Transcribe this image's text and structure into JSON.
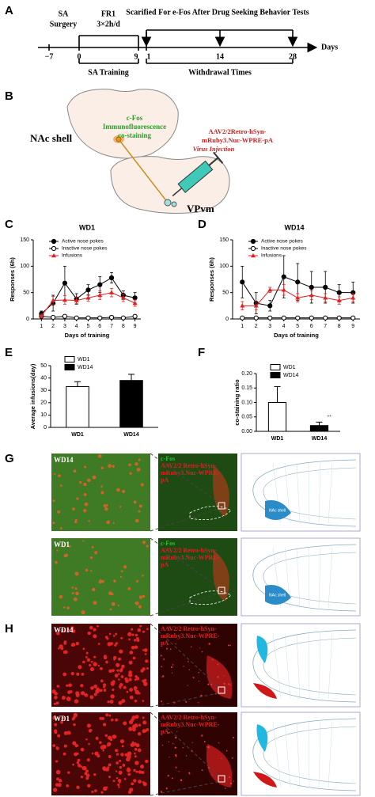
{
  "panel_labels": [
    "A",
    "B",
    "C",
    "D",
    "E",
    "F",
    "G",
    "H"
  ],
  "timeline": {
    "header": "Scarified For e-Fos After Drug Seeking Behavior Tests",
    "day_labels": [
      "−7",
      "0",
      "9",
      "1",
      "14",
      "28"
    ],
    "axis_label": "Days",
    "surgery": [
      "SA",
      "Surgery"
    ],
    "training_schedule": [
      "FR1",
      "3×2h/d"
    ],
    "training": "SA Training",
    "withdrawal": "Withdrawal Times"
  },
  "schematic": {
    "region": "NAc shell",
    "staining": [
      "c-Fos",
      "Immunofluorescence",
      "co-staining"
    ],
    "virus": [
      "AAV2/2Retro-hSyn-",
      "mRuby3.Nuc-WPRE-pA"
    ],
    "virus_note": "Virus Injection",
    "target": "VPvm"
  },
  "chart_data": [
    {
      "type": "line",
      "title": "WD1",
      "xlabel": "Days of training",
      "ylabel": "Responses (6h)",
      "x": [
        1,
        2,
        3,
        4,
        5,
        6,
        7,
        8,
        9
      ],
      "xlim": [
        0.3,
        9.5
      ],
      "xticks": [
        1,
        2,
        3,
        4,
        5,
        6,
        7,
        8,
        9
      ],
      "ylim": [
        0,
        150
      ],
      "yticks": [
        0,
        50,
        100,
        150
      ],
      "series": [
        {
          "name": "Active nose pokes",
          "color": "#000000",
          "marker": "filled-circle",
          "values": [
            10,
            30,
            68,
            38,
            55,
            65,
            78,
            45,
            40
          ],
          "errors": [
            5,
            15,
            32,
            10,
            10,
            15,
            10,
            8,
            10
          ]
        },
        {
          "name": "Inactive nose pokes",
          "color": "#000000",
          "marker": "open-circle",
          "values": [
            5,
            3,
            5,
            2,
            2,
            2,
            3,
            2,
            5
          ],
          "errors": [
            3,
            2,
            3,
            1,
            1,
            1,
            2,
            1,
            3
          ]
        },
        {
          "name": "Infusions",
          "color": "#e02020",
          "marker": "triangle",
          "values": [
            6,
            35,
            36,
            35,
            40,
            45,
            50,
            40,
            30
          ],
          "errors": [
            3,
            8,
            8,
            6,
            6,
            8,
            8,
            7,
            6
          ]
        }
      ]
    },
    {
      "type": "line",
      "title": "WD14",
      "xlabel": "Days of training",
      "ylabel": "Responses (6h)",
      "x": [
        1,
        2,
        3,
        4,
        5,
        6,
        7,
        8,
        9
      ],
      "xlim": [
        0.3,
        9.5
      ],
      "xticks": [
        1,
        2,
        3,
        4,
        5,
        6,
        7,
        8,
        9
      ],
      "ylim": [
        0,
        150
      ],
      "yticks": [
        0,
        50,
        100,
        150
      ],
      "series": [
        {
          "name": "Active nose pokes",
          "color": "#000000",
          "marker": "filled-circle",
          "values": [
            70,
            30,
            25,
            80,
            70,
            60,
            60,
            50,
            50
          ],
          "errors": [
            30,
            20,
            10,
            40,
            35,
            30,
            30,
            15,
            20
          ]
        },
        {
          "name": "Inactive nose pokes",
          "color": "#000000",
          "marker": "open-circle",
          "values": [
            2,
            2,
            2,
            2,
            2,
            2,
            2,
            2,
            2
          ],
          "errors": [
            1,
            1,
            1,
            1,
            1,
            1,
            1,
            1,
            1
          ]
        },
        {
          "name": "Infusions",
          "color": "#e02020",
          "marker": "triangle",
          "values": [
            25,
            25,
            55,
            55,
            40,
            45,
            40,
            35,
            40
          ],
          "errors": [
            8,
            8,
            5,
            10,
            8,
            8,
            8,
            7,
            8
          ]
        }
      ]
    },
    {
      "type": "bar",
      "ylabel": "Average infusions(day)",
      "categories": [
        "WD1",
        "WD14"
      ],
      "values": [
        33,
        38
      ],
      "errors": [
        4,
        5
      ],
      "colors": [
        "#ffffff",
        "#000000"
      ],
      "legend": true,
      "ylim": [
        0,
        50
      ],
      "yticks": [
        0,
        10,
        20,
        30,
        40,
        50
      ]
    },
    {
      "type": "bar",
      "ylabel": "co-staining ratio",
      "categories": [
        "WD1",
        "WD14"
      ],
      "values": [
        0.1,
        0.02
      ],
      "errors": [
        0.055,
        0.012
      ],
      "colors": [
        "#ffffff",
        "#000000"
      ],
      "legend": true,
      "significance": "**",
      "ylim": [
        0,
        0.2
      ],
      "yticks": [
        {
          "value": 0,
          "label": "0.00"
        },
        {
          "value": 0.05,
          "label": "0.05"
        },
        {
          "value": 0.1,
          "label": "0.10"
        },
        {
          "value": 0.15,
          "label": "0.15"
        },
        {
          "value": 0.2,
          "label": "0.20"
        }
      ]
    }
  ],
  "micrographs": {
    "g_rows": [
      {
        "group": "WD14",
        "overlay": [
          "c-Fos",
          "AAV2/2 Retro-hSyn-",
          "mRuby3.Nuc-WPRE-",
          "pA"
        ]
      },
      {
        "group": "WD1",
        "overlay": [
          "c-Fos",
          "AAV2/2 Retro-hSyn-",
          "mRuby3.Nuc-WPRE-",
          "pA"
        ]
      }
    ],
    "h_rows": [
      {
        "group": "WD14",
        "overlay": [
          "AAV2/2 Retro-hSyn-",
          "mRuby3.Nuc-WPRE-",
          "pA"
        ]
      },
      {
        "group": "WD1",
        "overlay": [
          "AAV2/2 Retro-hSyn-",
          "mRuby3.Nuc-WPRE-",
          "pA"
        ]
      }
    ],
    "atlas_label": "NAc shell"
  }
}
